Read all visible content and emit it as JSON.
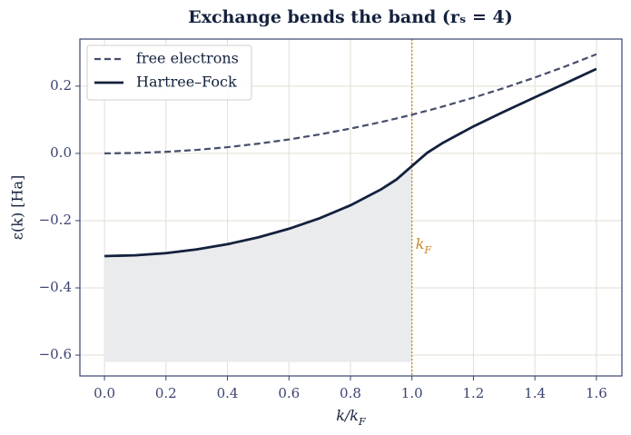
{
  "chart_data": {
    "type": "line",
    "title": "Exchange bends the band (rₛ = 4)",
    "xlabel": {
      "text": "k/k",
      "sub": "F"
    },
    "ylabel": "ε(k)  [Ha]",
    "x": [
      0,
      0.1,
      0.2,
      0.3,
      0.4,
      0.5,
      0.6,
      0.7,
      0.8,
      0.9,
      0.95,
      1.0,
      1.05,
      1.1,
      1.2,
      1.3,
      1.4,
      1.5,
      1.6
    ],
    "series": [
      {
        "name": "free electrons",
        "color": "#454d6b",
        "dash": true,
        "values": [
          0,
          0.0012,
          0.0046,
          0.0104,
          0.0184,
          0.0288,
          0.0414,
          0.0564,
          0.0737,
          0.0932,
          0.1039,
          0.1151,
          0.1269,
          0.1393,
          0.1657,
          0.1945,
          0.2256,
          0.259,
          0.2947
        ]
      },
      {
        "name": "Hartree–Fock",
        "color": "#14213d",
        "dash": false,
        "values": [
          -0.3054,
          -0.3032,
          -0.2967,
          -0.2857,
          -0.2701,
          -0.2497,
          -0.2242,
          -0.1928,
          -0.1545,
          -0.1069,
          -0.0775,
          -0.0376,
          0.0019,
          0.031,
          0.0802,
          0.1244,
          0.1667,
          0.2087,
          0.2512
        ]
      }
    ],
    "shade": {
      "series": 1,
      "x_to": 1.0,
      "floor": -0.62,
      "color": "#eaebed"
    },
    "vline": {
      "x": 1.0,
      "color": "#c8862a",
      "label": {
        "text": "k",
        "sub": "F"
      },
      "label_y": -0.27
    },
    "xlim": [
      -0.08,
      1.683
    ],
    "ylim": [
      -0.662,
      0.34
    ],
    "xticks": [
      {
        "value": 0,
        "label": "0.0"
      },
      0.2,
      0.4,
      0.6,
      0.8,
      {
        "value": 1,
        "label": "1.0"
      },
      1.2,
      1.4,
      1.6
    ],
    "yticks": [
      {
        "value": -0.6,
        "label": "−0.6"
      },
      {
        "value": -0.4,
        "label": "−0.4"
      },
      {
        "value": -0.2,
        "label": "−0.2"
      },
      {
        "value": 0,
        "label": "0.0"
      },
      0.2
    ],
    "grid": true,
    "legend": "upper left"
  }
}
